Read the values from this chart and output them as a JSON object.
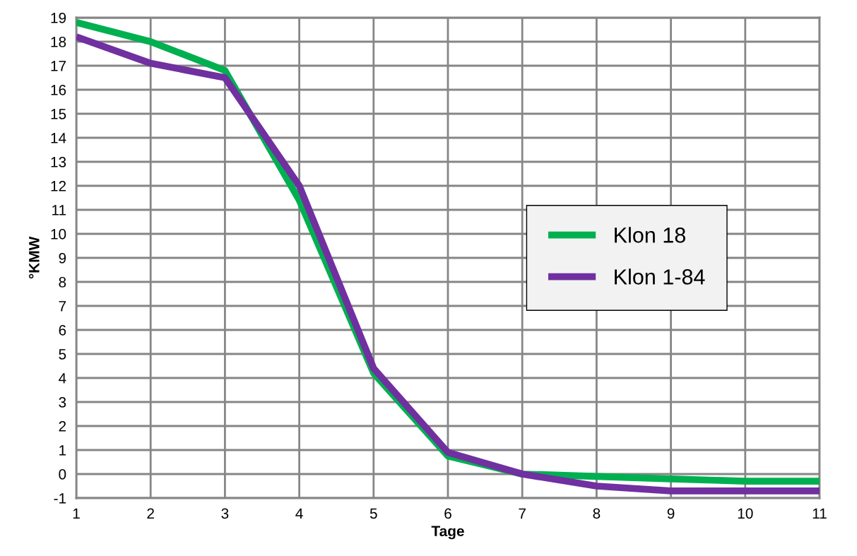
{
  "chart_data": {
    "type": "line",
    "xlabel": "Tage",
    "ylabel": "°KMW",
    "x": [
      1,
      2,
      3,
      4,
      5,
      6,
      7,
      8,
      9,
      10,
      11
    ],
    "xlim": [
      1,
      11
    ],
    "xticks": [
      1,
      2,
      3,
      4,
      5,
      6,
      7,
      8,
      9,
      10,
      11
    ],
    "ylim": [
      -1,
      19
    ],
    "yticks": [
      -1,
      0,
      1,
      2,
      3,
      4,
      5,
      6,
      7,
      8,
      9,
      10,
      11,
      12,
      13,
      14,
      15,
      16,
      17,
      18,
      19
    ],
    "grid": true,
    "legend": "right",
    "marker": "none",
    "line_style": "solid",
    "series": [
      {
        "name": "Klon 18",
        "color": "#00b050",
        "values": [
          18.8,
          18.0,
          16.8,
          11.4,
          4.2,
          0.75,
          0,
          -0.1,
          -0.2,
          -0.3,
          -0.3
        ]
      },
      {
        "name": "Klon 1-84",
        "color": "#7030a0",
        "values": [
          18.2,
          17.1,
          16.5,
          12.0,
          4.4,
          0.9,
          0,
          -0.5,
          -0.7,
          -0.7,
          -0.7
        ]
      }
    ]
  }
}
